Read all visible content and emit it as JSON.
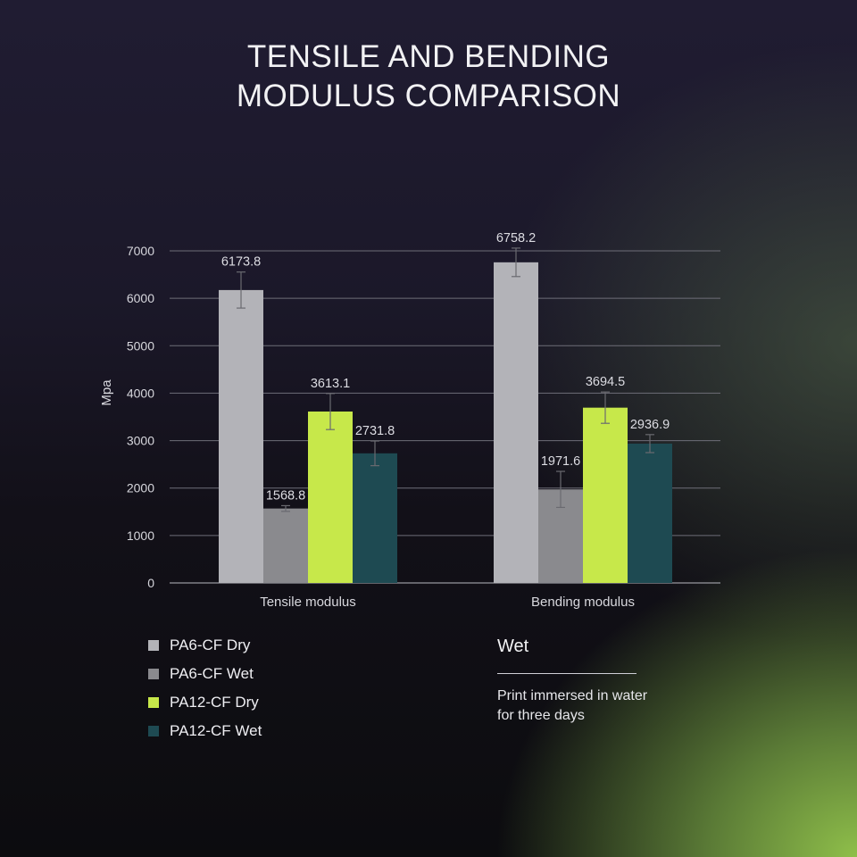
{
  "title_lines": [
    "TENSILE AND BENDING",
    "MODULUS COMPARISON"
  ],
  "chart_data": {
    "type": "bar",
    "title": "TENSILE AND BENDING MODULUS COMPARISON",
    "categories": [
      "Tensile modulus",
      "Bending modulus"
    ],
    "ylabel": "Mpa",
    "ylim": [
      0,
      7000
    ],
    "yticks": [
      0,
      1000,
      2000,
      3000,
      4000,
      5000,
      6000,
      7000
    ],
    "grid": true,
    "error_bars": true,
    "series": [
      {
        "name": "PA6-CF Dry",
        "values": [
          6173.8,
          6758.2
        ],
        "labels": [
          "6173.8",
          "6758.2"
        ],
        "error": [
          380,
          300
        ],
        "color": "#b3b3b8"
      },
      {
        "name": "PA6-CF Wet",
        "values": [
          1568.8,
          1971.6
        ],
        "labels": [
          "1568.8",
          "1971.6"
        ],
        "error": [
          60,
          380
        ],
        "color": "#8a8a8e"
      },
      {
        "name": "PA12-CF Dry",
        "values": [
          3613.1,
          3694.5
        ],
        "labels": [
          "3613.1",
          "3694.5"
        ],
        "error": [
          380,
          330
        ],
        "color": "#c7e84a"
      },
      {
        "name": "PA12-CF Wet",
        "values": [
          2731.8,
          2936.9
        ],
        "labels": [
          "2731.8",
          "2936.9"
        ],
        "error": [
          260,
          190
        ],
        "color": "#1e4a52"
      }
    ]
  },
  "note": {
    "heading": "Wet",
    "text_lines": [
      "Print immersed in water",
      "for three days"
    ]
  }
}
